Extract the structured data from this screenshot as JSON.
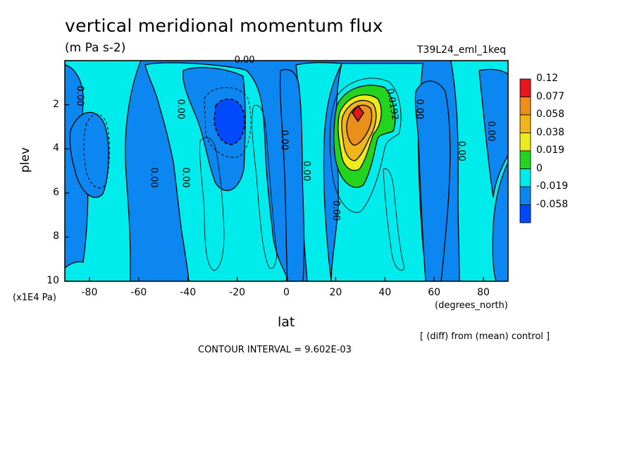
{
  "chart_data": {
    "type": "heatmap",
    "title": "vertical meridional momentum flux",
    "subtitle": "(m Pa s-2)",
    "run_name": "T39L24_eml_1keq",
    "xlabel": "lat",
    "xunits": "(degrees_north)",
    "ylabel": "plev",
    "yunits": "(x1E4 Pa)",
    "xlim": [
      -90,
      90
    ],
    "ylim": [
      10,
      0
    ],
    "x_ticks": [
      "-80",
      "-60",
      "-40",
      "-20",
      "0",
      "20",
      "40",
      "60",
      "80"
    ],
    "x_tick_values": [
      -80,
      -60,
      -40,
      -20,
      0,
      20,
      40,
      60,
      80
    ],
    "y_ticks": [
      "2",
      "4",
      "6",
      "8",
      "10"
    ],
    "y_tick_values": [
      2,
      4,
      6,
      8,
      10
    ],
    "legend": {
      "position": "right",
      "levels": [
        "0.12",
        "0.077",
        "0.058",
        "0.038",
        "0.019",
        "0",
        "-0.019",
        "-0.058"
      ],
      "colors": [
        "#e8161b",
        "#e8901a",
        "#f0b41d",
        "#ecec1c",
        "#23d41f",
        "#00ecec",
        "#0c86f0",
        "#0049ff"
      ]
    },
    "contour_labels": [
      {
        "text": "0.00",
        "lat": -85,
        "p": 1.6
      },
      {
        "text": "0.00",
        "lat": -44,
        "p": 2.2
      },
      {
        "text": "0.00",
        "lat": -55,
        "p": 5.3
      },
      {
        "text": "0.00",
        "lat": -42,
        "p": 5.3
      },
      {
        "text": "0.00",
        "lat": -17,
        "p": 0.1
      },
      {
        "text": "0.00",
        "lat": -2,
        "p": 3.6
      },
      {
        "text": "0.00",
        "lat": 7,
        "p": 5.0
      },
      {
        "text": "0.00",
        "lat": 19,
        "p": 6.8
      },
      {
        "text": "0.0192",
        "lat": 42,
        "p": 2.0
      },
      {
        "text": "0.00",
        "lat": 53,
        "p": 2.2
      },
      {
        "text": "0.00",
        "lat": 70,
        "p": 4.1
      },
      {
        "text": "0.00",
        "lat": 82,
        "p": 3.2
      }
    ],
    "features": [
      {
        "kind": "max",
        "value_range": "0.077-0.12",
        "lat": 29,
        "p": 2.5
      },
      {
        "kind": "min",
        "value_range": "below -0.019",
        "lat": -23,
        "p": 2.8
      }
    ],
    "contour_interval_note": "CONTOUR INTERVAL = 9.602E-03",
    "diff_note": "[ (diff) from (mean) control ]"
  }
}
